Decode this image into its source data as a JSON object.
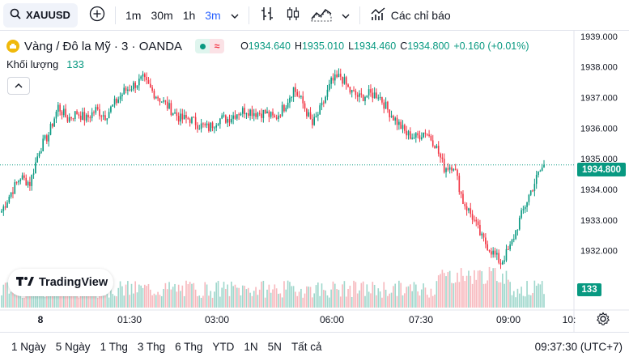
{
  "toolbar": {
    "symbol": "XAUUSD",
    "intervals": [
      "1m",
      "30m",
      "1h",
      "3m"
    ],
    "active_interval": "3m",
    "indicators_label": "Các chỉ báo"
  },
  "legend": {
    "title": "Vàng / Đô la Mỹ · 3 · OANDA",
    "open_label": "O",
    "open": "1934.640",
    "high_label": "H",
    "high": "1935.010",
    "low_label": "L",
    "low": "1934.460",
    "close_label": "C",
    "close": "1934.800",
    "change": "+0.160 (+0.01%)",
    "volume_label": "Khối lượng",
    "volume": "133"
  },
  "colors": {
    "up": "#089981",
    "down": "#f23645",
    "up_vol": "#9fd7cc",
    "down_vol": "#f7b8bd",
    "accent": "#2962ff"
  },
  "price_axis": {
    "ticks": [
      "1939.000",
      "1938.000",
      "1937.000",
      "1936.000",
      "1935.000",
      "1934.000",
      "1933.000",
      "1932.000"
    ],
    "last_price": "1934.800",
    "last_volume": "133"
  },
  "time_axis": {
    "labels": [
      "8",
      "01:30",
      "03:00",
      "06:00",
      "07:30",
      "09:00",
      "10:"
    ]
  },
  "brand": {
    "logo_text": "TradingView"
  },
  "bottom": {
    "ranges": [
      "1 Ngày",
      "5 Ngày",
      "1 Thg",
      "3 Thg",
      "6 Thg",
      "YTD",
      "1N",
      "5N",
      "Tất cả"
    ],
    "clock": "09:37:30 (UTC+7)"
  },
  "chart_data": {
    "type": "candlestick",
    "ylim": [
      1931.25,
      1939.1
    ],
    "anchors_close": [
      [
        0,
        1933.3
      ],
      [
        5,
        1933.9
      ],
      [
        10,
        1934.4
      ],
      [
        15,
        1934.2
      ],
      [
        20,
        1935.3
      ],
      [
        25,
        1935.8
      ],
      [
        30,
        1936.7
      ],
      [
        35,
        1936.3
      ],
      [
        40,
        1936.5
      ],
      [
        45,
        1936.3
      ],
      [
        50,
        1936.6
      ],
      [
        55,
        1936.4
      ],
      [
        60,
        1936.8
      ],
      [
        65,
        1937.2
      ],
      [
        70,
        1937.4
      ],
      [
        75,
        1937.6
      ],
      [
        80,
        1937.2
      ],
      [
        85,
        1936.9
      ],
      [
        90,
        1936.6
      ],
      [
        95,
        1936.3
      ],
      [
        100,
        1936.3
      ],
      [
        105,
        1936.1
      ],
      [
        110,
        1936.0
      ],
      [
        115,
        1936.3
      ],
      [
        120,
        1936.3
      ],
      [
        125,
        1936.5
      ],
      [
        130,
        1936.6
      ],
      [
        135,
        1936.5
      ],
      [
        140,
        1936.5
      ],
      [
        145,
        1936.3
      ],
      [
        150,
        1936.7
      ],
      [
        155,
        1937.3
      ],
      [
        160,
        1936.8
      ],
      [
        165,
        1936.1
      ],
      [
        170,
        1936.7
      ],
      [
        175,
        1937.5
      ],
      [
        180,
        1937.7
      ],
      [
        185,
        1937.2
      ],
      [
        190,
        1937.0
      ],
      [
        195,
        1937.1
      ],
      [
        200,
        1937.1
      ],
      [
        205,
        1936.6
      ],
      [
        210,
        1936.2
      ],
      [
        215,
        1935.8
      ],
      [
        220,
        1935.7
      ],
      [
        225,
        1935.9
      ],
      [
        230,
        1935.5
      ],
      [
        235,
        1934.7
      ],
      [
        240,
        1934.8
      ],
      [
        245,
        1933.6
      ],
      [
        250,
        1933.1
      ],
      [
        255,
        1932.4
      ],
      [
        260,
        1932.0
      ],
      [
        265,
        1931.6
      ],
      [
        270,
        1932.1
      ],
      [
        275,
        1933.0
      ],
      [
        280,
        1933.8
      ],
      [
        285,
        1934.5
      ],
      [
        288,
        1934.8
      ]
    ],
    "last_close": 1934.8,
    "last_volume": 133
  }
}
